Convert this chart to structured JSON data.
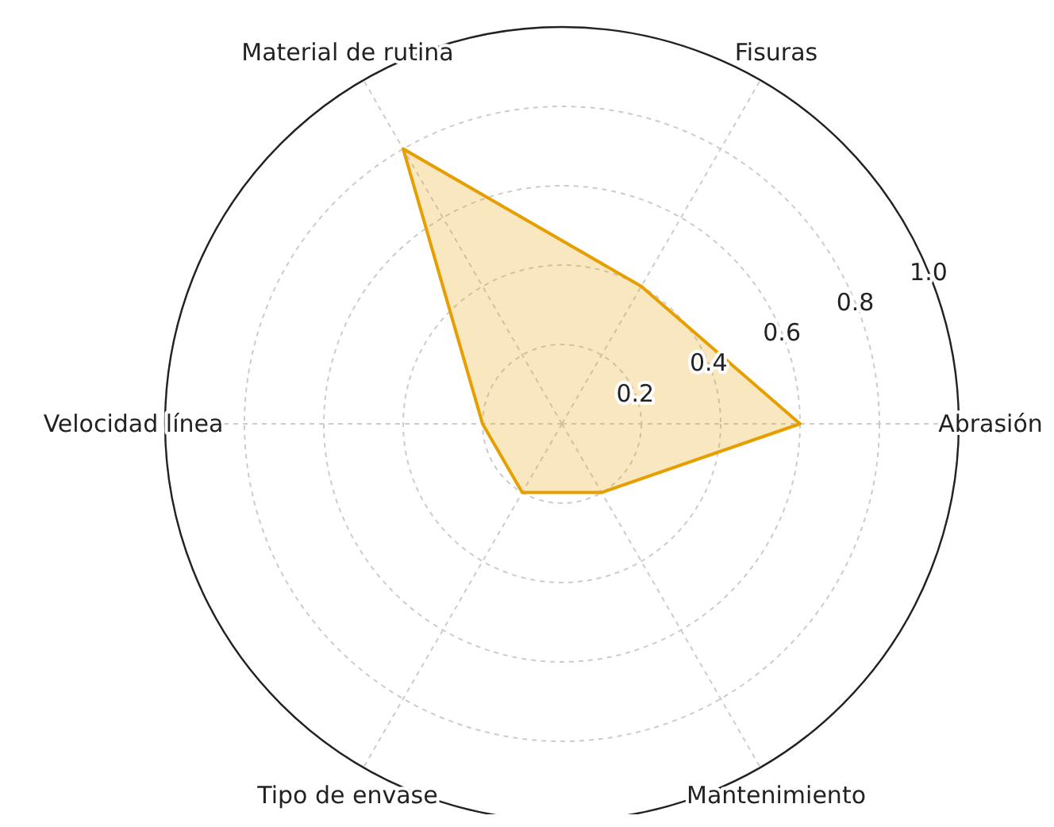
{
  "chart_data": {
    "type": "radar",
    "categories": [
      "Fisuras",
      "Abrasión",
      "Mantenimiento",
      "Tipo de envase",
      "Velocidad línea",
      "Material de rutina"
    ],
    "series": [
      {
        "color": "#e69f00",
        "values": [
          0.4,
          0.6,
          0.2,
          0.2,
          0.2,
          0.8
        ]
      }
    ],
    "ylim": [
      0,
      1
    ],
    "yticks": [
      0.2,
      0.4,
      0.6,
      0.8,
      {
        "value": 1,
        "label": "1.0"
      }
    ],
    "grid": true
  }
}
